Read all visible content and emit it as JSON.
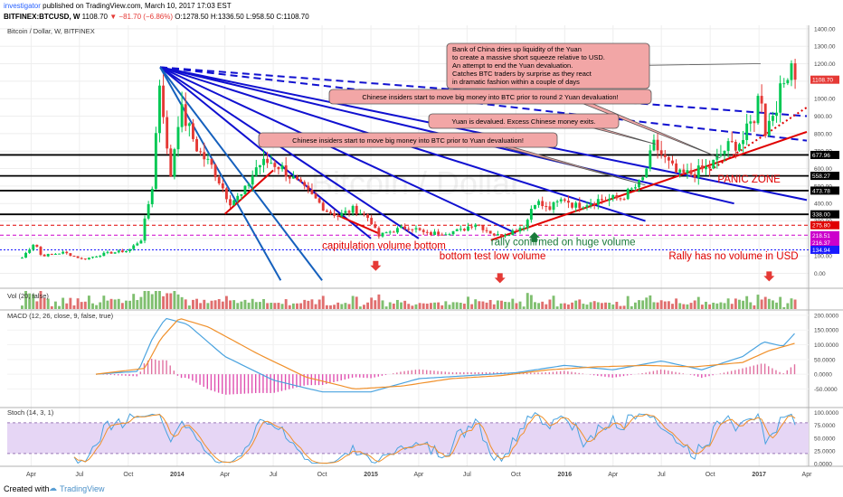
{
  "header": {
    "author": "investigator",
    "published": "published on TradingView.com, March 10, 2017 17:03 EST",
    "symbol": "BITFINEX:BTCUSD, W",
    "price": "1108.70",
    "change": "−81.70 (−6.86%)",
    "ohlc": "O:1278.50 H:1336.50 L:958.50 C:1108.70"
  },
  "main_title": "Bitcoin / Dollar, W, BITFINEX",
  "watermark": "Bitcoin / Dollar",
  "footer": {
    "created_with": "Created with",
    "brand": "TradingView"
  },
  "colors": {
    "up": "#00c853",
    "down": "#e53935",
    "trend": "#1010d0",
    "support": "#e00000"
  },
  "chart_data": [
    {
      "type": "candlestick",
      "title": "Bitcoin / Dollar, W, BITFINEX",
      "ylim": [
        -80,
        1420
      ],
      "yticks": [
        0,
        100,
        200,
        300,
        400,
        500,
        600,
        700,
        800,
        900,
        1000,
        1100,
        1200,
        1300,
        1400
      ],
      "ytick_labels": [
        "0.00",
        "100.00",
        "200.00",
        "300.00",
        "400.00",
        "500.00",
        "600.00",
        "700.00",
        "800.00",
        "900.00",
        "1000.00",
        "1100.00",
        "1200.00",
        "1300.00",
        "1400.00"
      ],
      "x_range": [
        "2013-02-15",
        "2017-04-01"
      ],
      "xticks": [
        {
          "date": "2013-04-01",
          "label": "Apr"
        },
        {
          "date": "2013-07-01",
          "label": "Jul"
        },
        {
          "date": "2013-10-01",
          "label": "Oct"
        },
        {
          "date": "2014-01-01",
          "label": "2014"
        },
        {
          "date": "2014-04-01",
          "label": "Apr"
        },
        {
          "date": "2014-07-01",
          "label": "Jul"
        },
        {
          "date": "2014-10-01",
          "label": "Oct"
        },
        {
          "date": "2015-01-01",
          "label": "2015"
        },
        {
          "date": "2015-04-01",
          "label": "Apr"
        },
        {
          "date": "2015-07-01",
          "label": "Jul"
        },
        {
          "date": "2015-10-01",
          "label": "Oct"
        },
        {
          "date": "2016-01-01",
          "label": "2016"
        },
        {
          "date": "2016-04-01",
          "label": "Apr"
        },
        {
          "date": "2016-07-01",
          "label": "Jul"
        },
        {
          "date": "2016-10-01",
          "label": "Oct"
        },
        {
          "date": "2017-01-01",
          "label": "2017"
        },
        {
          "date": "2017-04-01",
          "label": "Apr"
        }
      ],
      "anchors": [
        [
          "2013-03-15",
          90
        ],
        [
          "2013-04-08",
          180
        ],
        [
          "2013-04-20",
          100
        ],
        [
          "2013-06-01",
          120
        ],
        [
          "2013-07-08",
          80
        ],
        [
          "2013-08-20",
          115
        ],
        [
          "2013-10-01",
          130
        ],
        [
          "2013-10-25",
          195
        ],
        [
          "2013-11-15",
          500
        ],
        [
          "2013-11-30",
          1140
        ],
        [
          "2013-12-18",
          520
        ],
        [
          "2014-01-06",
          950
        ],
        [
          "2014-02-10",
          700
        ],
        [
          "2014-03-10",
          600
        ],
        [
          "2014-04-10",
          410
        ],
        [
          "2014-05-05",
          450
        ],
        [
          "2014-06-01",
          620
        ],
        [
          "2014-06-25",
          640
        ],
        [
          "2014-07-15",
          610
        ],
        [
          "2014-08-20",
          500
        ],
        [
          "2014-09-20",
          420
        ],
        [
          "2014-10-10",
          360
        ],
        [
          "2014-11-01",
          330
        ],
        [
          "2014-12-01",
          370
        ],
        [
          "2014-12-31",
          310
        ],
        [
          "2015-01-14",
          210
        ],
        [
          "2015-02-01",
          235
        ],
        [
          "2015-03-15",
          270
        ],
        [
          "2015-04-15",
          225
        ],
        [
          "2015-05-20",
          235
        ],
        [
          "2015-06-20",
          245
        ],
        [
          "2015-07-15",
          290
        ],
        [
          "2015-08-25",
          215
        ],
        [
          "2015-09-20",
          235
        ],
        [
          "2015-10-20",
          280
        ],
        [
          "2015-11-04",
          420
        ],
        [
          "2015-12-01",
          365
        ],
        [
          "2015-12-31",
          430
        ],
        [
          "2016-01-20",
          385
        ],
        [
          "2016-03-01",
          420
        ],
        [
          "2016-04-15",
          430
        ],
        [
          "2016-05-25",
          520
        ],
        [
          "2016-06-18",
          740
        ],
        [
          "2016-07-05",
          660
        ],
        [
          "2016-08-02",
          560
        ],
        [
          "2016-09-01",
          575
        ],
        [
          "2016-10-01",
          610
        ],
        [
          "2016-11-01",
          720
        ],
        [
          "2016-12-01",
          760
        ],
        [
          "2016-12-25",
          910
        ],
        [
          "2017-01-04",
          1080
        ],
        [
          "2017-01-12",
          810
        ],
        [
          "2017-02-01",
          960
        ],
        [
          "2017-02-20",
          1110
        ],
        [
          "2017-03-01",
          1250
        ],
        [
          "2017-03-10",
          1108.7
        ]
      ],
      "horizontal_levels": [
        {
          "value": 677.96,
          "label": "677.96",
          "color": "#000000",
          "style": "solid"
        },
        {
          "value": 558.27,
          "label": "558.27",
          "color": "#000000",
          "style": "solid"
        },
        {
          "value": 473.78,
          "label": "473.78",
          "color": "#000000",
          "style": "solid"
        },
        {
          "value": 338.0,
          "label": "338.00",
          "color": "#000000",
          "style": "solid"
        },
        {
          "value": 275.8,
          "label": "275.80",
          "color": "#e00000",
          "style": "dashed"
        },
        {
          "value": 218.51,
          "label": "218.51",
          "color": "#cc00cc",
          "style": "dashed"
        },
        {
          "value": 216.37,
          "label": "216.37",
          "color": "#cc00cc",
          "style": "none"
        },
        {
          "value": 134.94,
          "label": "134.94",
          "color": "#1a1aff",
          "style": "dotted"
        }
      ],
      "last_price": {
        "value": 1108.7,
        "label": "1108.70"
      },
      "fan_origin": {
        "date": "2013-11-30",
        "value": 1180
      },
      "fan_lines": [
        {
          "end": [
            "2017-04-01",
            900
          ],
          "color": "#1010d0",
          "dash": "dashed"
        },
        {
          "end": [
            "2017-04-01",
            760
          ],
          "color": "#1010d0",
          "dash": "dashed"
        },
        {
          "end": [
            "2017-04-01",
            420
          ],
          "color": "#1010d0",
          "dash": "solid"
        },
        {
          "end": [
            "2016-11-15",
            400
          ],
          "color": "#1010d0",
          "dash": "solid"
        },
        {
          "end": [
            "2016-06-01",
            300
          ],
          "color": "#1010d0",
          "dash": "solid"
        },
        {
          "end": [
            "2015-10-01",
            230
          ],
          "color": "#1010d0",
          "dash": "solid"
        },
        {
          "end": [
            "2015-04-01",
            200
          ],
          "color": "#1010d0",
          "dash": "solid"
        },
        {
          "end": [
            "2015-01-01",
            200
          ],
          "color": "#1010d0",
          "dash": "solid"
        },
        {
          "end": [
            "2014-10-01",
            -40
          ],
          "color": "#1560bd",
          "dash": "solid"
        },
        {
          "end": [
            "2014-07-15",
            -40
          ],
          "color": "#1560bd",
          "dash": "solid"
        }
      ],
      "support_lines": [
        {
          "start": [
            "2015-08-15",
            190
          ],
          "end": [
            "2017-04-01",
            810
          ],
          "color": "#e00000",
          "dash": "solid"
        },
        {
          "start": [
            "2016-10-01",
            590
          ],
          "end": [
            "2017-04-01",
            950
          ],
          "color": "#e00000",
          "dash": "dotted"
        },
        {
          "start": [
            "2014-04-01",
            340
          ],
          "end": [
            "2014-07-01",
            590
          ],
          "color": "#e00000",
          "dash": "solid"
        },
        {
          "start": [
            "2014-11-01",
            330
          ],
          "end": [
            "2015-01-15",
            230
          ],
          "color": "#e00000",
          "dash": "solid"
        }
      ],
      "callouts": [
        {
          "id": "callout-bank-of-china",
          "text": [
            "Bank of China dries up liquidity of the Yuan",
            "to create a massive short squeeze relative to USD.",
            "An attempt to end the Yuan devaluation.",
            "Catches BTC traders by surprise as they react",
            "in dramatic fashion within a couple of days"
          ],
          "pointer": [
            "2017-01-04",
            1200
          ]
        },
        {
          "id": "callout-round2",
          "text": [
            "Chinese insiders start to move big money into BTC prior to round 2 Yuan devaluation!"
          ],
          "pointer": [
            "2016-10-20",
            660
          ]
        },
        {
          "id": "callout-devalued",
          "text": [
            "Yuan is devalued.  Excess Chinese money exits."
          ],
          "pointer": [
            "2016-06-20",
            740
          ]
        },
        {
          "id": "callout-insiders",
          "text": [
            "Chinese insiders start to move big money into BTC prior to Yuan devaluation!"
          ],
          "pointer": [
            "2016-06-01",
            505
          ]
        }
      ],
      "annotations": [
        {
          "text": "PANIC ZONE",
          "color": "#e00000",
          "at": [
            "2016-10-15",
            520
          ]
        },
        {
          "text": "capitulation volume bottom",
          "color": "#e00000",
          "at": [
            "2014-10-01",
            140
          ]
        },
        {
          "text": "rally confirmed on huge volume",
          "color": "#1a7a3a",
          "at": [
            "2015-08-15",
            160
          ]
        },
        {
          "text": "bottom test low volume",
          "color": "#e00000",
          "at": [
            "2015-05-10",
            80
          ]
        },
        {
          "text": "Rally has no volume in USD",
          "color": "#e00000",
          "at": [
            "2016-07-15",
            80
          ]
        }
      ],
      "markers": [
        {
          "type": "arrow-down",
          "color": "#e53935",
          "at": [
            "2015-01-10",
            40
          ]
        },
        {
          "type": "arrow-down",
          "color": "#e53935",
          "at": [
            "2015-09-01",
            -30
          ]
        },
        {
          "type": "arrow-down",
          "color": "#e53935",
          "at": [
            "2017-01-20",
            -20
          ]
        },
        {
          "type": "arrow-up",
          "color": "#1a7a3a",
          "at": [
            "2015-11-05",
            210
          ]
        }
      ]
    },
    {
      "type": "bar",
      "title": "Vol (20, false)",
      "series": [
        {
          "name": "Volume",
          "values": []
        }
      ]
    },
    {
      "type": "line",
      "title": "MACD (12, 26, close, 9, false, true)",
      "ylim": [
        -110,
        215
      ],
      "yticks": [
        -50,
        0,
        50,
        100,
        150,
        200
      ],
      "ytick_labels": [
        "-50.0000",
        "0.0000",
        "50.0000",
        "100.0000",
        "150.0000",
        "200.0000"
      ],
      "macd_anchors": [
        [
          "2013-08-01",
          0
        ],
        [
          "2013-10-20",
          10
        ],
        [
          "2013-11-15",
          120
        ],
        [
          "2013-12-10",
          190
        ],
        [
          "2014-01-20",
          170
        ],
        [
          "2014-04-01",
          60
        ],
        [
          "2014-07-01",
          -20
        ],
        [
          "2014-10-01",
          -60
        ],
        [
          "2015-01-01",
          -60
        ],
        [
          "2015-04-01",
          -15
        ],
        [
          "2015-07-01",
          -5
        ],
        [
          "2015-10-01",
          5
        ],
        [
          "2016-01-01",
          30
        ],
        [
          "2016-04-01",
          15
        ],
        [
          "2016-07-01",
          45
        ],
        [
          "2016-09-15",
          15
        ],
        [
          "2016-12-01",
          60
        ],
        [
          "2017-01-10",
          110
        ],
        [
          "2017-02-15",
          95
        ],
        [
          "2017-03-10",
          140
        ]
      ],
      "signal_anchors": [
        [
          "2013-08-01",
          0
        ],
        [
          "2013-11-01",
          20
        ],
        [
          "2013-12-01",
          120
        ],
        [
          "2014-01-05",
          190
        ],
        [
          "2014-03-01",
          160
        ],
        [
          "2014-06-01",
          70
        ],
        [
          "2014-09-01",
          -10
        ],
        [
          "2014-12-01",
          -50
        ],
        [
          "2015-03-01",
          -40
        ],
        [
          "2015-06-01",
          -15
        ],
        [
          "2015-09-01",
          -5
        ],
        [
          "2015-12-01",
          15
        ],
        [
          "2016-03-01",
          25
        ],
        [
          "2016-06-01",
          30
        ],
        [
          "2016-09-01",
          25
        ],
        [
          "2016-12-01",
          40
        ],
        [
          "2017-01-20",
          80
        ],
        [
          "2017-03-10",
          105
        ]
      ]
    },
    {
      "type": "line",
      "title": "Stoch (14, 3, 1)",
      "ylim": [
        -5,
        108
      ],
      "yticks": [
        0,
        25,
        50,
        75,
        100
      ],
      "ytick_labels": [
        "0.0000",
        "25.0000",
        "50.0000",
        "75.0000",
        "100.0000"
      ],
      "bands": [
        20,
        80
      ]
    }
  ]
}
